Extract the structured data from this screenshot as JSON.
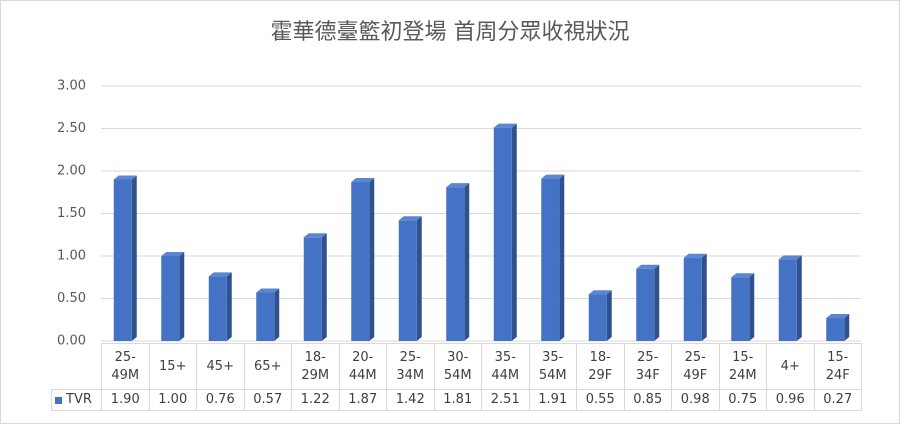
{
  "chart_data": {
    "type": "bar",
    "title": "霍華德臺籃初登場 首周分眾收視狀況",
    "categories": [
      "25-49M",
      "15+",
      "45+",
      "65+",
      "18-29M",
      "20-44M",
      "25-34M",
      "30-54M",
      "35-44M",
      "35-54M",
      "18-29F",
      "25-34F",
      "25-49F",
      "15-24M",
      "4+",
      "15-24F"
    ],
    "series": [
      {
        "name": "TVR",
        "color": "#4472c4",
        "values": [
          1.9,
          1.0,
          0.76,
          0.57,
          1.22,
          1.87,
          1.42,
          1.81,
          2.51,
          1.91,
          0.55,
          0.85,
          0.98,
          0.75,
          0.96,
          0.27
        ],
        "value_labels": [
          "1.90",
          "1.00",
          "0.76",
          "0.57",
          "1.22",
          "1.87",
          "1.42",
          "1.81",
          "2.51",
          "1.91",
          "0.55",
          "0.85",
          "0.98",
          "0.75",
          "0.96",
          "0.27"
        ]
      }
    ],
    "ylim": [
      0,
      3
    ],
    "yticks": [
      {
        "value": 0,
        "label": "0.00"
      },
      {
        "value": 0.5,
        "label": "0.50"
      },
      {
        "value": 1,
        "label": "1.00"
      },
      {
        "value": 1.5,
        "label": "1.50"
      },
      {
        "value": 2,
        "label": "2.00"
      },
      {
        "value": 2.5,
        "label": "2.50"
      },
      {
        "value": 3,
        "label": "3.00"
      }
    ],
    "grid": true
  }
}
